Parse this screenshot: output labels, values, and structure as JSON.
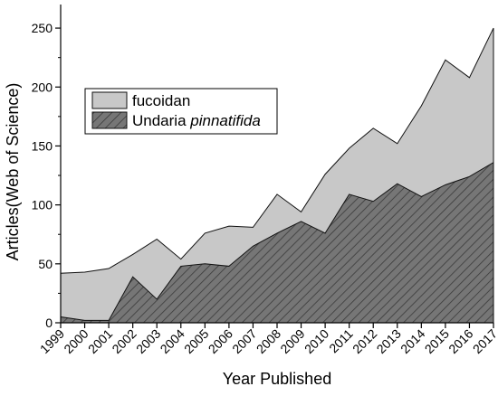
{
  "chart_data": {
    "type": "area",
    "title": "",
    "xlabel": "Year Published",
    "ylabel": "Articles(Web of Science)",
    "x": [
      "1999",
      "2000",
      "2001",
      "2002",
      "2003",
      "2004",
      "2005",
      "2006",
      "2007",
      "2008",
      "2009",
      "2010",
      "2011",
      "2012",
      "2013",
      "2014",
      "2015",
      "2016",
      "2017"
    ],
    "ylim": [
      0,
      270
    ],
    "yticks": [
      0,
      50,
      100,
      150,
      200,
      250
    ],
    "grid": false,
    "legend_position": "upper-left",
    "series": [
      {
        "name": "fucoidan",
        "color": "#c8c8c8",
        "pattern": "solid",
        "values": [
          42,
          43,
          46,
          58,
          71,
          54,
          76,
          82,
          81,
          109,
          94,
          126,
          148,
          165,
          152,
          184,
          223,
          208,
          250
        ]
      },
      {
        "name": "Undaria pinnatifida",
        "color": "#707070",
        "pattern": "hatched",
        "values": [
          5,
          2,
          2,
          39,
          20,
          48,
          50,
          48,
          65,
          76,
          86,
          76,
          109,
          103,
          118,
          107,
          117,
          124,
          136
        ]
      }
    ]
  }
}
